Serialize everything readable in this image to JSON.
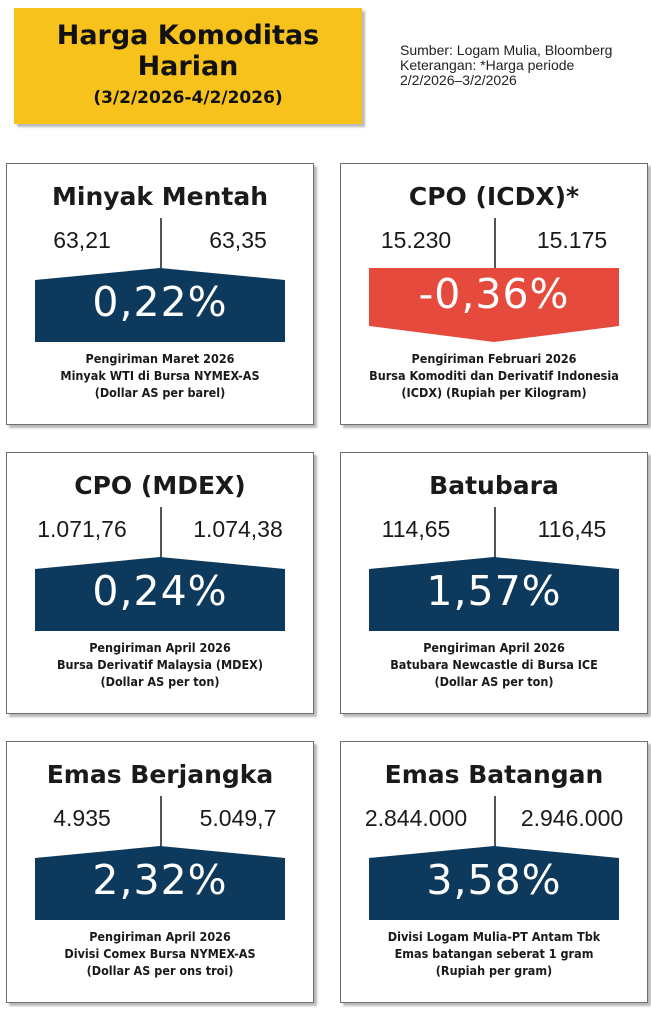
{
  "header": {
    "title_line1": "Harga Komoditas",
    "title_line2": "Harian",
    "date_range": "(3/2/2026-4/2/2026)",
    "source": "Sumber: Logam Mulia, Bloomberg",
    "note_line1": "Keterangan: *Harga periode",
    "note_line2": "2/2/2026–3/2/2026"
  },
  "colors": {
    "up": "#0d3a5c",
    "down": "#e54a3d",
    "header_bg": "#f7c21c"
  },
  "cards": [
    {
      "name": "Minyak Mentah",
      "prev": "63,21",
      "curr": "63,35",
      "change": "0,22%",
      "direction": "up",
      "desc": [
        "Pengiriman Maret 2026",
        "Minyak WTI di Bursa NYMEX-AS",
        "(Dollar AS per barel)"
      ]
    },
    {
      "name": "CPO (ICDX)*",
      "prev": "15.230",
      "curr": "15.175",
      "change": "-0,36%",
      "direction": "down",
      "desc": [
        "Pengiriman Februari 2026",
        "Bursa Komoditi dan Derivatif Indonesia",
        "(ICDX) (Rupiah per Kilogram)"
      ]
    },
    {
      "name": "CPO (MDEX)",
      "prev": "1.071,76",
      "curr": "1.074,38",
      "change": "0,24%",
      "direction": "up",
      "desc": [
        "Pengiriman April 2026",
        "Bursa Derivatif Malaysia (MDEX)",
        "(Dollar AS per ton)"
      ]
    },
    {
      "name": "Batubara",
      "prev": "114,65",
      "curr": "116,45",
      "change": "1,57%",
      "direction": "up",
      "desc": [
        "Pengiriman April 2026",
        "Batubara Newcastle di Bursa ICE",
        "(Dollar AS per ton)"
      ]
    },
    {
      "name": "Emas Berjangka",
      "prev": "4.935",
      "curr": "5.049,7",
      "change": "2,32%",
      "direction": "up",
      "desc": [
        "Pengiriman April 2026",
        "Divisi Comex Bursa NYMEX-AS",
        "(Dollar AS per ons troi)"
      ]
    },
    {
      "name": "Emas Batangan",
      "prev": "2.844.000",
      "curr": "2.946.000",
      "change": "3,58%",
      "direction": "up",
      "desc": [
        "Divisi Logam Mulia-PT Antam Tbk",
        "Emas batangan seberat 1 gram",
        "(Rupiah per gram)"
      ]
    }
  ]
}
